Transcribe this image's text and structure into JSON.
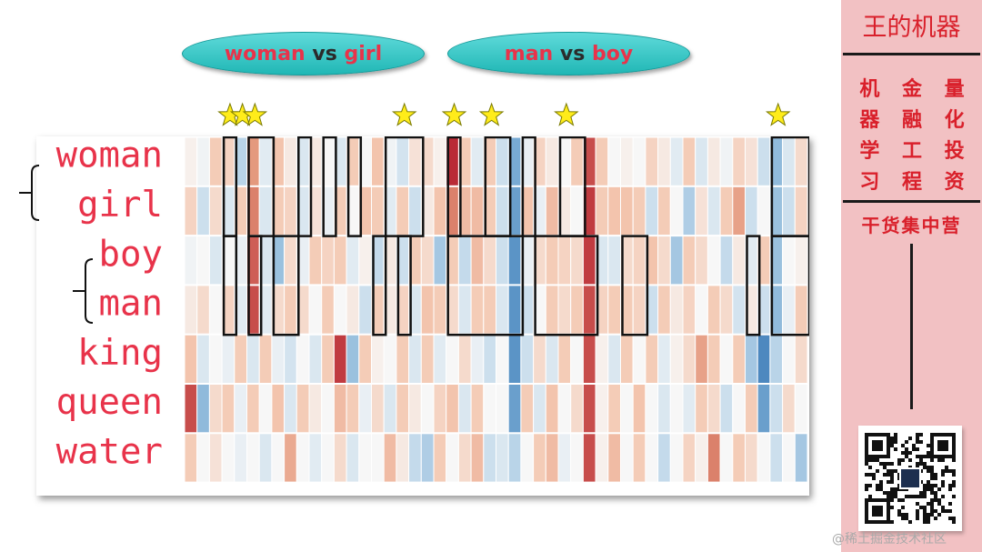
{
  "pills": [
    {
      "left_word": "woman",
      "mid": "vs",
      "right_word": "girl"
    },
    {
      "left_word": "man",
      "mid": "vs",
      "right_word": "boy"
    }
  ],
  "chart_data": {
    "type": "heatmap",
    "rows": [
      "woman",
      "girl",
      "boy",
      "man",
      "king",
      "queen",
      "water"
    ],
    "color_scale": "diverging red-blue (red positive, blue negative)",
    "n_columns": 50,
    "values": [
      [
        0.05,
        -0.05,
        0.3,
        0.25,
        -0.4,
        0.6,
        -0.15,
        0.35,
        0.1,
        -0.2,
        0.1,
        0.0,
        -0.2,
        0.3,
        0.0,
        0.35,
        -0.05,
        -0.25,
        0.15,
        0.2,
        0.05,
        0.95,
        0.3,
        -0.15,
        0.3,
        -0.3,
        -0.7,
        -0.1,
        0.25,
        0.1,
        0.0,
        0.3,
        0.85,
        0.3,
        0.0,
        0.05,
        0.0,
        0.25,
        0.1,
        -0.15,
        0.3,
        -0.2,
        0.1,
        -0.05,
        0.25,
        0.15,
        -0.3,
        -0.6,
        -0.2,
        0.2
      ],
      [
        0.25,
        -0.3,
        0.2,
        -0.2,
        0.3,
        0.7,
        -0.2,
        0.3,
        0.25,
        -0.2,
        0.15,
        -0.1,
        0.3,
        0.0,
        0.35,
        0.3,
        -0.15,
        0.3,
        -0.3,
        0.1,
        0.35,
        0.7,
        0.4,
        0.4,
        0.3,
        -0.3,
        -0.75,
        0.35,
        -0.1,
        0.4,
        0.1,
        0.0,
        0.9,
        0.3,
        0.35,
        0.35,
        0.3,
        -0.3,
        0.3,
        0.0,
        -0.45,
        0.15,
        -0.2,
        0.3,
        0.55,
        -0.3,
        0.0,
        -0.55,
        -0.3,
        0.25
      ],
      [
        -0.05,
        0.0,
        -0.2,
        0.0,
        -0.1,
        0.8,
        -0.2,
        -0.55,
        0.2,
        -0.1,
        0.3,
        0.25,
        0.3,
        -0.15,
        0.05,
        -0.35,
        0.1,
        -0.3,
        0.3,
        0.2,
        -0.5,
        0.3,
        -0.35,
        0.4,
        0.2,
        -0.3,
        -0.8,
        -0.1,
        0.2,
        0.3,
        0.25,
        0.2,
        0.9,
        -0.2,
        -0.2,
        0.2,
        0.25,
        0.35,
        0.2,
        -0.5,
        0.3,
        0.2,
        0.0,
        -0.35,
        0.1,
        -0.15,
        0.3,
        -0.55,
        0.0,
        0.05
      ],
      [
        0.1,
        0.2,
        0.0,
        0.25,
        -0.15,
        0.85,
        -0.15,
        0.2,
        0.3,
        0.2,
        0.0,
        0.3,
        0.0,
        0.1,
        -0.3,
        0.3,
        0.1,
        0.25,
        -0.2,
        0.35,
        0.3,
        0.2,
        -0.2,
        0.3,
        0.3,
        -0.2,
        -0.8,
        -0.3,
        0.0,
        0.3,
        0.2,
        0.3,
        0.85,
        0.25,
        0.3,
        0.3,
        0.25,
        -0.3,
        0.3,
        0.1,
        0.25,
        0.0,
        0.3,
        0.2,
        -0.25,
        0.1,
        -0.3,
        -0.6,
        -0.1,
        0.3
      ],
      [
        0.35,
        -0.2,
        0.0,
        -0.1,
        0.3,
        -0.2,
        0.3,
        -0.1,
        -0.25,
        0.0,
        -0.2,
        0.3,
        0.9,
        -0.55,
        0.3,
        0.05,
        0.0,
        0.3,
        -0.2,
        0.3,
        -0.15,
        0.0,
        0.2,
        -0.1,
        -0.3,
        0.0,
        -0.8,
        -0.3,
        0.2,
        -0.2,
        0.3,
        0.0,
        0.85,
        0.05,
        -0.2,
        0.3,
        0.0,
        0.3,
        -0.15,
        0.05,
        0.2,
        0.55,
        0.3,
        0.0,
        0.3,
        -0.5,
        -0.85,
        -0.4,
        0.0,
        0.2
      ],
      [
        0.85,
        -0.6,
        0.2,
        0.3,
        -0.1,
        0.3,
        0.0,
        0.35,
        -0.2,
        0.3,
        0.1,
        0.0,
        0.4,
        0.3,
        -0.1,
        0.2,
        -0.2,
        0.3,
        0.1,
        0.0,
        0.25,
        0.35,
        -0.2,
        0.3,
        0.0,
        0.0,
        -0.75,
        0.3,
        -0.2,
        0.35,
        0.0,
        0.2,
        0.85,
        0.05,
        0.3,
        0.0,
        0.35,
        0.0,
        -0.2,
        0.0,
        -0.15,
        0.3,
        0.2,
        -0.3,
        0.0,
        0.3,
        -0.75,
        -0.3,
        0.2,
        0.0
      ],
      [
        0.3,
        0.0,
        0.15,
        0.0,
        -0.1,
        0.0,
        -0.2,
        0.0,
        0.5,
        0.0,
        -0.15,
        0.0,
        0.2,
        -0.2,
        0.0,
        0.0,
        0.4,
        0.1,
        -0.35,
        -0.45,
        0.3,
        0.0,
        0.2,
        0.4,
        -0.3,
        -0.2,
        -0.4,
        0.0,
        0.3,
        0.4,
        -0.1,
        0.0,
        0.85,
        0.05,
        0.4,
        0.0,
        0.3,
        0.0,
        -0.35,
        0.0,
        0.25,
        0.05,
        0.7,
        0.0,
        0.3,
        0.2,
        0.0,
        -0.3,
        0.0,
        -0.5
      ]
    ],
    "highlight_boxes": [
      {
        "rows": [
          0,
          1
        ],
        "cols": [
          3,
          3
        ]
      },
      {
        "rows": [
          0,
          1
        ],
        "cols": [
          5,
          6
        ]
      },
      {
        "rows": [
          0,
          1
        ],
        "cols": [
          9,
          9
        ]
      },
      {
        "rows": [
          0,
          1
        ],
        "cols": [
          11,
          11
        ]
      },
      {
        "rows": [
          0,
          1
        ],
        "cols": [
          13,
          13
        ]
      },
      {
        "rows": [
          0,
          1
        ],
        "cols": [
          16,
          18
        ]
      },
      {
        "rows": [
          0,
          1
        ],
        "cols": [
          21,
          21
        ]
      },
      {
        "rows": [
          0,
          1
        ],
        "cols": [
          24,
          25
        ]
      },
      {
        "rows": [
          0,
          1
        ],
        "cols": [
          27,
          27
        ]
      },
      {
        "rows": [
          0,
          1
        ],
        "cols": [
          30,
          31
        ]
      },
      {
        "rows": [
          0,
          1
        ],
        "cols": [
          47,
          49
        ]
      },
      {
        "rows": [
          2,
          3
        ],
        "cols": [
          3,
          3
        ]
      },
      {
        "rows": [
          2,
          3
        ],
        "cols": [
          5,
          5
        ]
      },
      {
        "rows": [
          2,
          3
        ],
        "cols": [
          7,
          8
        ]
      },
      {
        "rows": [
          2,
          3
        ],
        "cols": [
          15,
          15
        ]
      },
      {
        "rows": [
          2,
          3
        ],
        "cols": [
          17,
          17
        ]
      },
      {
        "rows": [
          2,
          3
        ],
        "cols": [
          21,
          26
        ]
      },
      {
        "rows": [
          2,
          3
        ],
        "cols": [
          28,
          32
        ]
      },
      {
        "rows": [
          2,
          3
        ],
        "cols": [
          35,
          36
        ]
      },
      {
        "rows": [
          2,
          3
        ],
        "cols": [
          45,
          45
        ]
      },
      {
        "rows": [
          2,
          3
        ],
        "cols": [
          47,
          49
        ]
      }
    ],
    "star_columns": [
      3,
      4,
      5,
      17,
      21,
      24,
      30,
      47
    ],
    "pair_brackets": [
      {
        "rows": [
          0,
          1
        ]
      },
      {
        "rows": [
          2,
          3
        ]
      }
    ],
    "xlabel": "",
    "ylabel": ""
  },
  "colors": {
    "red_max": "#b2182b",
    "blue_max": "#2166ac",
    "neutral": "#f7f7f7",
    "row_label": "#e8334a",
    "star_fill": "#ffec1a",
    "star_stroke": "#7a7a00"
  },
  "sidebar": {
    "title": "王的机器",
    "grid": [
      "机",
      "金",
      "量",
      "器",
      "融",
      "化",
      "学",
      "工",
      "投",
      "习",
      "程",
      "资"
    ],
    "slogan": "干货集中营",
    "qr_icon": "qr-code-icon"
  },
  "watermark": "@稀土掘金技术社区"
}
